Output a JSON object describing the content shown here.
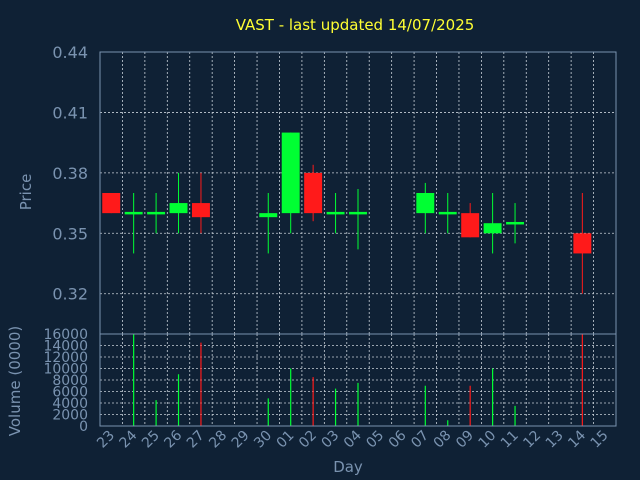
{
  "chart_data": [
    {
      "type": "candlestick",
      "title": "VAST - last updated 14/07/2025",
      "ylabel": "Price",
      "ylim": [
        0.3,
        0.44
      ],
      "yticks": [
        "0.44",
        "0.41",
        "0.38",
        "0.35",
        "0.32"
      ],
      "ytick_values": [
        0.44,
        0.41,
        0.38,
        0.35,
        0.32
      ],
      "colors": {
        "up": "#00ff33",
        "down": "#ff1a1a"
      },
      "candles": [
        {
          "day": "23",
          "open": 0.37,
          "close": 0.36,
          "high": 0.37,
          "low": 0.36
        },
        {
          "day": "24",
          "open": 0.36,
          "close": 0.36,
          "high": 0.37,
          "low": 0.34
        },
        {
          "day": "25",
          "open": 0.36,
          "close": 0.36,
          "high": 0.37,
          "low": 0.35
        },
        {
          "day": "26",
          "open": 0.36,
          "close": 0.365,
          "high": 0.38,
          "low": 0.35
        },
        {
          "day": "27",
          "open": 0.365,
          "close": 0.358,
          "high": 0.38,
          "low": 0.35
        },
        {
          "day": "30",
          "open": 0.358,
          "close": 0.36,
          "high": 0.37,
          "low": 0.34
        },
        {
          "day": "01",
          "open": 0.36,
          "close": 0.4,
          "high": 0.4,
          "low": 0.35
        },
        {
          "day": "02",
          "open": 0.38,
          "close": 0.36,
          "high": 0.384,
          "low": 0.356
        },
        {
          "day": "03",
          "open": 0.36,
          "close": 0.36,
          "high": 0.37,
          "low": 0.35
        },
        {
          "day": "04",
          "open": 0.36,
          "close": 0.36,
          "high": 0.372,
          "low": 0.342
        },
        {
          "day": "07",
          "open": 0.36,
          "close": 0.37,
          "high": 0.375,
          "low": 0.35
        },
        {
          "day": "08",
          "open": 0.36,
          "close": 0.36,
          "high": 0.37,
          "low": 0.35
        },
        {
          "day": "09",
          "open": 0.36,
          "close": 0.348,
          "high": 0.365,
          "low": 0.348
        },
        {
          "day": "10",
          "open": 0.35,
          "close": 0.355,
          "high": 0.37,
          "low": 0.34
        },
        {
          "day": "11",
          "open": 0.355,
          "close": 0.355,
          "high": 0.365,
          "low": 0.345
        },
        {
          "day": "14",
          "open": 0.35,
          "close": 0.34,
          "high": 0.37,
          "low": 0.32
        }
      ]
    },
    {
      "type": "bar",
      "ylabel": "Volume (0000)",
      "xlabel": "Day",
      "ylim": [
        0,
        16000
      ],
      "yticks": [
        "16000",
        "14000",
        "12000",
        "10000",
        "8000",
        "6000",
        "4000",
        "2000",
        "0"
      ],
      "ytick_values": [
        16000,
        14000,
        12000,
        10000,
        8000,
        6000,
        4000,
        2000,
        0
      ],
      "categories": [
        "23",
        "24",
        "25",
        "26",
        "27",
        "28",
        "29",
        "30",
        "01",
        "02",
        "03",
        "04",
        "05",
        "06",
        "07",
        "08",
        "09",
        "10",
        "11",
        "12",
        "13",
        "14",
        "15"
      ],
      "volumes": [
        {
          "day": "23",
          "value": 0,
          "direction": "down"
        },
        {
          "day": "24",
          "value": 16000,
          "direction": "up"
        },
        {
          "day": "25",
          "value": 4500,
          "direction": "up"
        },
        {
          "day": "26",
          "value": 9000,
          "direction": "up"
        },
        {
          "day": "27",
          "value": 14500,
          "direction": "down"
        },
        {
          "day": "30",
          "value": 4800,
          "direction": "up"
        },
        {
          "day": "01",
          "value": 10000,
          "direction": "up"
        },
        {
          "day": "02",
          "value": 8500,
          "direction": "down"
        },
        {
          "day": "03",
          "value": 6500,
          "direction": "up"
        },
        {
          "day": "04",
          "value": 7500,
          "direction": "up"
        },
        {
          "day": "07",
          "value": 7000,
          "direction": "up"
        },
        {
          "day": "08",
          "value": 1000,
          "direction": "up"
        },
        {
          "day": "09",
          "value": 7000,
          "direction": "down"
        },
        {
          "day": "10",
          "value": 10000,
          "direction": "up"
        },
        {
          "day": "11",
          "value": 3500,
          "direction": "up"
        },
        {
          "day": "14",
          "value": 16000,
          "direction": "down"
        }
      ]
    }
  ]
}
